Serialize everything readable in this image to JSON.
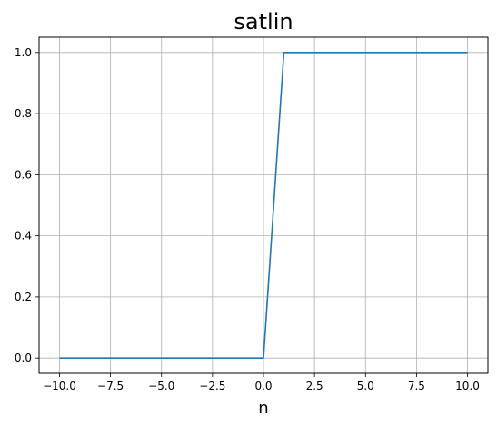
{
  "chart_data": {
    "type": "line",
    "title": "satlin",
    "xlabel": "n",
    "ylabel": "",
    "xlim": [
      -11.0,
      11.0
    ],
    "ylim": [
      -0.05,
      1.05
    ],
    "xticks": [
      -10.0,
      -7.5,
      -5.0,
      -2.5,
      0.0,
      2.5,
      5.0,
      7.5,
      10.0
    ],
    "xtick_labels": [
      "−10.0",
      "−7.5",
      "−5.0",
      "−2.5",
      "0.0",
      "2.5",
      "5.0",
      "7.5",
      "10.0"
    ],
    "yticks": [
      0.0,
      0.2,
      0.4,
      0.6,
      0.8,
      1.0
    ],
    "ytick_labels": [
      "0.0",
      "0.2",
      "0.4",
      "0.6",
      "0.8",
      "1.0"
    ],
    "grid": true,
    "legend": "none",
    "series": [
      {
        "color": "#1f77b4",
        "x": [
          -10,
          0,
          1,
          10
        ],
        "y": [
          0,
          0,
          1,
          1
        ]
      }
    ]
  }
}
